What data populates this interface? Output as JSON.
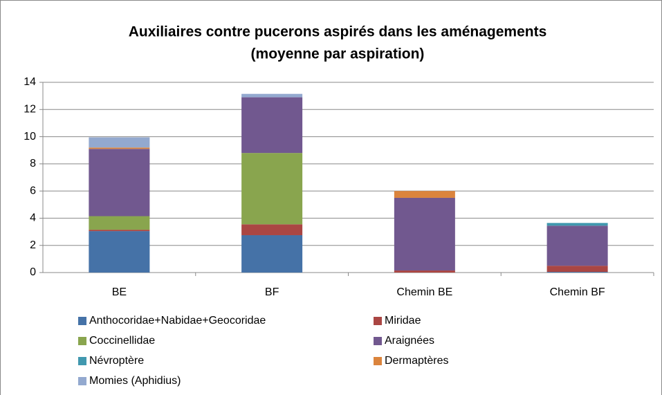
{
  "chart_data": {
    "type": "stacked_bar",
    "title": [
      "Auxiliaires contre pucerons aspirés dans les aménagements",
      "(moyenne par aspiration)"
    ],
    "categories": [
      "BE",
      "BF",
      "Chemin BE",
      "Chemin BF"
    ],
    "series": [
      {
        "name": "Anthocoridae+Nabidae+Geocoridae",
        "color": "#4572a7",
        "values": [
          3.05,
          2.75,
          0,
          0.05
        ]
      },
      {
        "name": "Miridae",
        "color": "#aa4643",
        "values": [
          0.1,
          0.8,
          0.15,
          0.45
        ]
      },
      {
        "name": "Coccinellidae",
        "color": "#89a54e",
        "values": [
          1.0,
          5.25,
          0,
          0
        ]
      },
      {
        "name": "Araignées",
        "color": "#71588f",
        "values": [
          4.95,
          4.1,
          5.35,
          2.95
        ]
      },
      {
        "name": "Névroptère",
        "color": "#4198af",
        "values": [
          0,
          0,
          0,
          0.2
        ]
      },
      {
        "name": "Dermaptères",
        "color": "#db843d",
        "values": [
          0.1,
          0,
          0.5,
          0
        ]
      },
      {
        "name": "Momies (Aphidius)",
        "color": "#93a9cf",
        "values": [
          0.75,
          0.25,
          0,
          0
        ]
      }
    ],
    "ylim": [
      0,
      14
    ],
    "yticks": [
      0,
      2,
      4,
      6,
      8,
      10,
      12,
      14
    ],
    "grid": true
  }
}
